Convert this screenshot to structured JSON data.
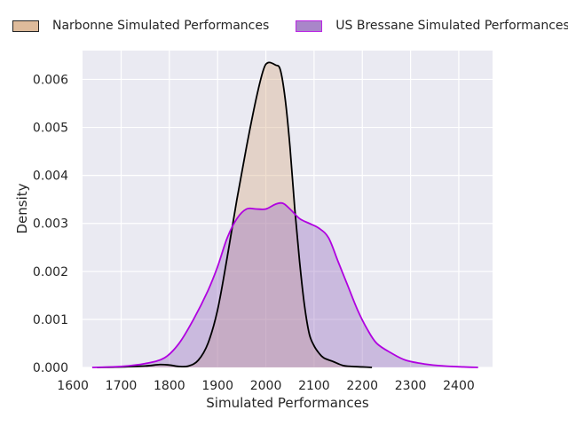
{
  "chart_data": {
    "type": "area",
    "title": "",
    "xlabel": "Simulated Performances",
    "ylabel": "Density",
    "xlim": [
      1620,
      2470
    ],
    "ylim": [
      0,
      0.0066
    ],
    "grid": true,
    "legend_placement": "top",
    "x_ticks": [
      1600,
      1700,
      1800,
      1900,
      2000,
      2100,
      2200,
      2300,
      2400
    ],
    "x_tick_labels": [
      "1600",
      "1700",
      "1800",
      "1900",
      "2000",
      "2100",
      "2200",
      "2300",
      "2400"
    ],
    "y_ticks": [
      0,
      0.001,
      0.002,
      0.003,
      0.004,
      0.005,
      0.006
    ],
    "y_tick_labels": [
      "0.000",
      "0.001",
      "0.002",
      "0.003",
      "0.004",
      "0.005",
      "0.006"
    ],
    "series": [
      {
        "name": "Narbonne Simulated Performances",
        "fill": "#d9b08a",
        "line": "#000000",
        "points": [
          [
            1650,
            0
          ],
          [
            1700,
            1e-05
          ],
          [
            1750,
            3e-05
          ],
          [
            1780,
            6e-05
          ],
          [
            1800,
            5e-05
          ],
          [
            1820,
            2e-05
          ],
          [
            1840,
            3e-05
          ],
          [
            1860,
            0.00015
          ],
          [
            1880,
            0.0005
          ],
          [
            1900,
            0.0012
          ],
          [
            1920,
            0.0023
          ],
          [
            1940,
            0.0035
          ],
          [
            1960,
            0.0046
          ],
          [
            1980,
            0.0056
          ],
          [
            1995,
            0.0062
          ],
          [
            2005,
            0.00635
          ],
          [
            2020,
            0.0063
          ],
          [
            2030,
            0.0062
          ],
          [
            2040,
            0.0056
          ],
          [
            2050,
            0.0046
          ],
          [
            2060,
            0.0033
          ],
          [
            2070,
            0.0022
          ],
          [
            2080,
            0.0013
          ],
          [
            2090,
            0.0007
          ],
          [
            2100,
            0.00045
          ],
          [
            2110,
            0.0003
          ],
          [
            2120,
            0.0002
          ],
          [
            2140,
            0.00012
          ],
          [
            2160,
            4e-05
          ],
          [
            2180,
            2e-05
          ],
          [
            2200,
            1e-05
          ],
          [
            2220,
            0
          ]
        ]
      },
      {
        "name": "US Bressane Simulated Performances",
        "fill": "#9b72c0",
        "line": "#b000e0",
        "points": [
          [
            1640,
            0
          ],
          [
            1700,
            2e-05
          ],
          [
            1750,
            8e-05
          ],
          [
            1790,
            0.0002
          ],
          [
            1820,
            0.0005
          ],
          [
            1850,
            0.001
          ],
          [
            1880,
            0.0016
          ],
          [
            1900,
            0.0021
          ],
          [
            1920,
            0.0027
          ],
          [
            1940,
            0.0031
          ],
          [
            1960,
            0.0033
          ],
          [
            1980,
            0.0033
          ],
          [
            2000,
            0.0033
          ],
          [
            2020,
            0.0034
          ],
          [
            2035,
            0.00342
          ],
          [
            2050,
            0.0033
          ],
          [
            2070,
            0.0031
          ],
          [
            2090,
            0.003
          ],
          [
            2110,
            0.0029
          ],
          [
            2130,
            0.0027
          ],
          [
            2150,
            0.0022
          ],
          [
            2170,
            0.0017
          ],
          [
            2190,
            0.0012
          ],
          [
            2210,
            0.0008
          ],
          [
            2230,
            0.0005
          ],
          [
            2260,
            0.0003
          ],
          [
            2290,
            0.00015
          ],
          [
            2330,
            7e-05
          ],
          [
            2370,
            3e-05
          ],
          [
            2410,
            1e-05
          ],
          [
            2440,
            0
          ]
        ]
      }
    ]
  }
}
